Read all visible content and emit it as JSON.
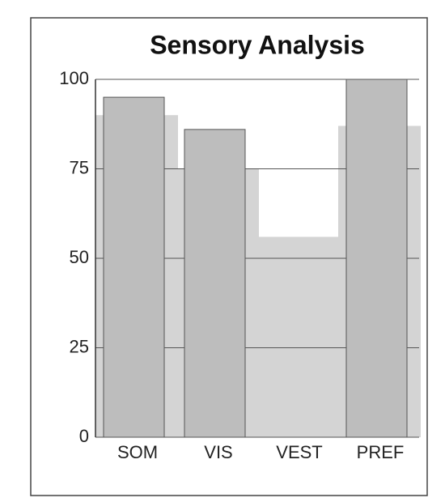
{
  "chart_data": {
    "type": "bar",
    "title": "Sensory Analysis",
    "categories": [
      "SOM",
      "VIS",
      "VEST",
      "PREF"
    ],
    "series": [
      {
        "color": "#d4d4d4",
        "values": [
          90,
          75,
          56,
          87
        ]
      },
      {
        "color": "#bdbdbd",
        "values": [
          95,
          86,
          0,
          100
        ]
      }
    ],
    "ylim": [
      0,
      100
    ],
    "yticks": [
      0,
      25,
      50,
      75,
      100
    ],
    "grid": true
  }
}
